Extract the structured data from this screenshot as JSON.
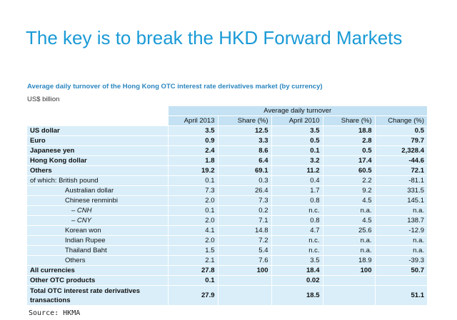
{
  "header": {
    "title": "The key is to break the HKD Forward Markets"
  },
  "table": {
    "caption": "Average daily turnover of the Hong Kong OTC interest rate derivatives market (by currency)",
    "unit": "US$ billion",
    "group_header": "Average daily turnover",
    "columns": [
      "April 2013",
      "Share (%)",
      "April 2010",
      "Share (%)",
      "Change (%)"
    ],
    "rows": [
      [
        "US dollar",
        "3.5",
        "12.5",
        "3.5",
        "18.8",
        "0.5"
      ],
      [
        "Euro",
        "0.9",
        "3.3",
        "0.5",
        "2.8",
        "79.7"
      ],
      [
        "Japanese yen",
        "2.4",
        "8.6",
        "0.1",
        "0.5",
        "2,328.4"
      ],
      [
        "Hong Kong dollar",
        "1.8",
        "6.4",
        "3.2",
        "17.4",
        "-44.6"
      ],
      [
        "Others",
        "19.2",
        "69.1",
        "11.2",
        "60.5",
        "72.1"
      ],
      [
        "of which: British pound",
        "0.1",
        "0.3",
        "0.4",
        "2.2",
        "-81.1"
      ],
      [
        "Australian dollar",
        "7.3",
        "26.4",
        "1.7",
        "9.2",
        "331.5"
      ],
      [
        "Chinese renminbi",
        "2.0",
        "7.3",
        "0.8",
        "4.5",
        "145.1"
      ],
      [
        "– CNH",
        "0.1",
        "0.2",
        "n.c.",
        "n.a.",
        "n.a."
      ],
      [
        "– CNY",
        "2.0",
        "7.1",
        "0.8",
        "4.5",
        "138.7"
      ],
      [
        "Korean won",
        "4.1",
        "14.8",
        "4.7",
        "25.6",
        "-12.9"
      ],
      [
        "Indian Rupee",
        "2.0",
        "7.2",
        "n.c.",
        "n.a.",
        "n.a."
      ],
      [
        "Thailand Baht",
        "1.5",
        "5.4",
        "n.c.",
        "n.a.",
        "n.a."
      ],
      [
        "Others",
        "2.1",
        "7.6",
        "3.5",
        "18.9",
        "-39.3"
      ],
      [
        "All currencies",
        "27.8",
        "100",
        "18.4",
        "100",
        "50.7"
      ],
      [
        "Other OTC products",
        "0.1",
        null,
        "0.02",
        null,
        null
      ],
      [
        "Total OTC interest rate derivatives transactions",
        "27.9",
        null,
        "18.5",
        null,
        "51.1"
      ]
    ]
  },
  "source": "Source: HKMA"
}
